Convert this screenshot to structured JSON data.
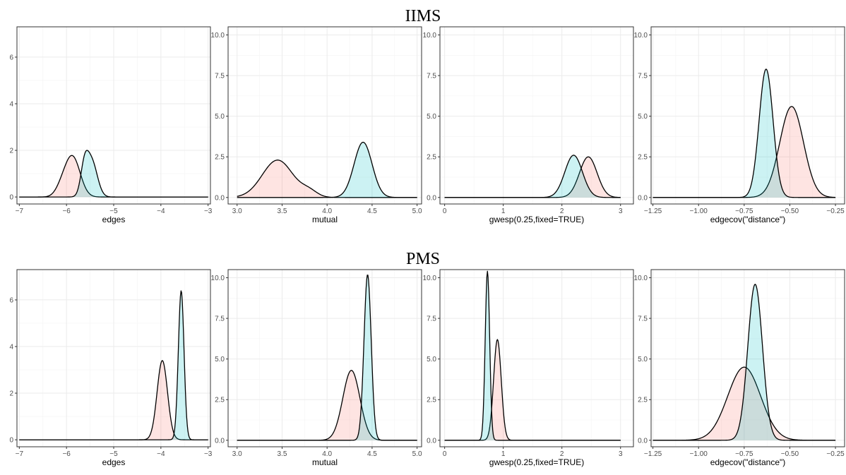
{
  "colors": {
    "series_a": "#f8766d",
    "series_b": "#00bfc4"
  },
  "rows": [
    {
      "title": "IIMS"
    },
    {
      "title": "PMS"
    }
  ],
  "chart_data": [
    {
      "type": "area",
      "row": 0,
      "col": 0,
      "xlabel": "edges",
      "xlim": [
        -7.05,
        -2.95
      ],
      "ylim": [
        -0.3,
        7.3
      ],
      "xticks": [
        -7,
        -6,
        -5,
        -4,
        -3
      ],
      "xtick_labels": [
        "−7",
        "−6",
        "−5",
        "−4",
        "−3"
      ],
      "yticks": [
        0,
        2,
        4,
        6
      ],
      "ytick_labels": [
        "0",
        "2",
        "4",
        "6"
      ],
      "series": [
        {
          "peaks": [
            {
              "mu": -6.1,
              "sigma": 0.13,
              "amp": 0.35
            },
            {
              "mu": -5.87,
              "sigma": 0.16,
              "amp": 1.7
            }
          ]
        },
        {
          "peaks": [
            {
              "mu": -5.62,
              "sigma": 0.08,
              "amp": 1.1
            },
            {
              "mu": -5.47,
              "sigma": 0.12,
              "amp": 1.55
            }
          ]
        }
      ]
    },
    {
      "type": "area",
      "row": 0,
      "col": 1,
      "xlabel": "mutual",
      "xlim": [
        2.9,
        5.05
      ],
      "ylim": [
        -0.4,
        10.5
      ],
      "xticks": [
        3.0,
        3.5,
        4.0,
        4.5,
        5.0
      ],
      "xtick_labels": [
        "3.0",
        "3.5",
        "4.0",
        "4.5",
        "5.0"
      ],
      "yticks": [
        0,
        2.5,
        5,
        7.5,
        10
      ],
      "ytick_labels": [
        "0.0",
        "2.5",
        "5.0",
        "7.5",
        "10.0"
      ],
      "series": [
        {
          "peaks": [
            {
              "mu": 3.45,
              "sigma": 0.17,
              "amp": 2.3
            },
            {
              "mu": 3.8,
              "sigma": 0.09,
              "amp": 0.35
            }
          ]
        },
        {
          "peaks": [
            {
              "mu": 4.4,
              "sigma": 0.1,
              "amp": 3.4
            }
          ]
        }
      ]
    },
    {
      "type": "area",
      "row": 0,
      "col": 2,
      "xlabel": "gwesp(0.25,fixed=TRUE)",
      "xlim": [
        -0.08,
        3.22
      ],
      "ylim": [
        -0.4,
        10.5
      ],
      "xticks": [
        0,
        1,
        2,
        3
      ],
      "xtick_labels": [
        "0",
        "1",
        "2",
        "3"
      ],
      "yticks": [
        0,
        2.5,
        5,
        7.5,
        10
      ],
      "ytick_labels": [
        "0.0",
        "2.5",
        "5.0",
        "7.5",
        "10.0"
      ],
      "series": [
        {
          "peaks": [
            {
              "mu": 2.45,
              "sigma": 0.15,
              "amp": 2.5
            }
          ]
        },
        {
          "peaks": [
            {
              "mu": 2.2,
              "sigma": 0.15,
              "amp": 2.6
            }
          ]
        }
      ]
    },
    {
      "type": "area",
      "row": 0,
      "col": 3,
      "xlabel": "edgecov(\"distance\")",
      "xlim": [
        -1.26,
        -0.2
      ],
      "ylim": [
        -0.4,
        10.5
      ],
      "xticks": [
        -1.25,
        -1.0,
        -0.75,
        -0.5,
        -0.25
      ],
      "xtick_labels": [
        "−1.25",
        "−1.00",
        "−0.75",
        "−0.50",
        "−0.25"
      ],
      "yticks": [
        0,
        2.5,
        5,
        7.5,
        10
      ],
      "ytick_labels": [
        "0.0",
        "2.5",
        "5.0",
        "7.5",
        "10.0"
      ],
      "series": [
        {
          "peaks": [
            {
              "mu": -0.49,
              "sigma": 0.065,
              "amp": 5.6
            }
          ]
        },
        {
          "peaks": [
            {
              "mu": -0.63,
              "sigma": 0.038,
              "amp": 7.9
            }
          ]
        }
      ]
    },
    {
      "type": "area",
      "row": 1,
      "col": 0,
      "xlabel": "edges",
      "xlim": [
        -7.05,
        -2.95
      ],
      "ylim": [
        -0.3,
        7.3
      ],
      "xticks": [
        -7,
        -6,
        -5,
        -4,
        -3
      ],
      "xtick_labels": [
        "−7",
        "−6",
        "−5",
        "−4",
        "−3"
      ],
      "yticks": [
        0,
        2,
        4,
        6
      ],
      "ytick_labels": [
        "0",
        "2",
        "4",
        "6"
      ],
      "series": [
        {
          "peaks": [
            {
              "mu": -3.97,
              "sigma": 0.11,
              "amp": 3.4
            }
          ]
        },
        {
          "peaks": [
            {
              "mu": -3.57,
              "sigma": 0.06,
              "amp": 6.4
            }
          ]
        }
      ]
    },
    {
      "type": "area",
      "row": 1,
      "col": 1,
      "xlabel": "mutual",
      "xlim": [
        2.9,
        5.05
      ],
      "ylim": [
        -0.4,
        10.5
      ],
      "xticks": [
        3.0,
        3.5,
        4.0,
        4.5,
        5.0
      ],
      "xtick_labels": [
        "3.0",
        "3.5",
        "4.0",
        "4.5",
        "5.0"
      ],
      "yticks": [
        0,
        2.5,
        5,
        7.5,
        10
      ],
      "ytick_labels": [
        "0.0",
        "2.5",
        "5.0",
        "7.5",
        "10.0"
      ],
      "series": [
        {
          "peaks": [
            {
              "mu": 4.27,
              "sigma": 0.095,
              "amp": 4.3
            }
          ]
        },
        {
          "peaks": [
            {
              "mu": 4.45,
              "sigma": 0.04,
              "amp": 10.2
            }
          ]
        }
      ]
    },
    {
      "type": "area",
      "row": 1,
      "col": 2,
      "xlabel": "gwesp(0.25,fixed=TRUE)",
      "xlim": [
        -0.08,
        3.22
      ],
      "ylim": [
        -0.4,
        10.5
      ],
      "xticks": [
        0,
        1,
        2,
        3
      ],
      "xtick_labels": [
        "0",
        "1",
        "2",
        "3"
      ],
      "yticks": [
        0,
        2.5,
        5,
        7.5,
        10
      ],
      "ytick_labels": [
        "0.0",
        "2.5",
        "5.0",
        "7.5",
        "10.0"
      ],
      "series": [
        {
          "peaks": [
            {
              "mu": 0.9,
              "sigma": 0.065,
              "amp": 6.2
            }
          ]
        },
        {
          "peaks": [
            {
              "mu": 0.73,
              "sigma": 0.038,
              "amp": 10.4
            }
          ]
        }
      ]
    },
    {
      "type": "area",
      "row": 1,
      "col": 3,
      "xlabel": "edgecov(\"distance\")",
      "xlim": [
        -1.26,
        -0.2
      ],
      "ylim": [
        -0.4,
        10.5
      ],
      "xticks": [
        -1.25,
        -1.0,
        -0.75,
        -0.5,
        -0.25
      ],
      "xtick_labels": [
        "−1.25",
        "−1.00",
        "−0.75",
        "−0.50",
        "−0.25"
      ],
      "yticks": [
        0,
        2.5,
        5,
        7.5,
        10
      ],
      "ytick_labels": [
        "0.0",
        "2.5",
        "5.0",
        "7.5",
        "10.0"
      ],
      "series": [
        {
          "peaks": [
            {
              "mu": -0.75,
              "sigma": 0.09,
              "amp": 4.5
            }
          ]
        },
        {
          "peaks": [
            {
              "mu": -0.69,
              "sigma": 0.04,
              "amp": 9.6
            }
          ]
        }
      ]
    }
  ]
}
